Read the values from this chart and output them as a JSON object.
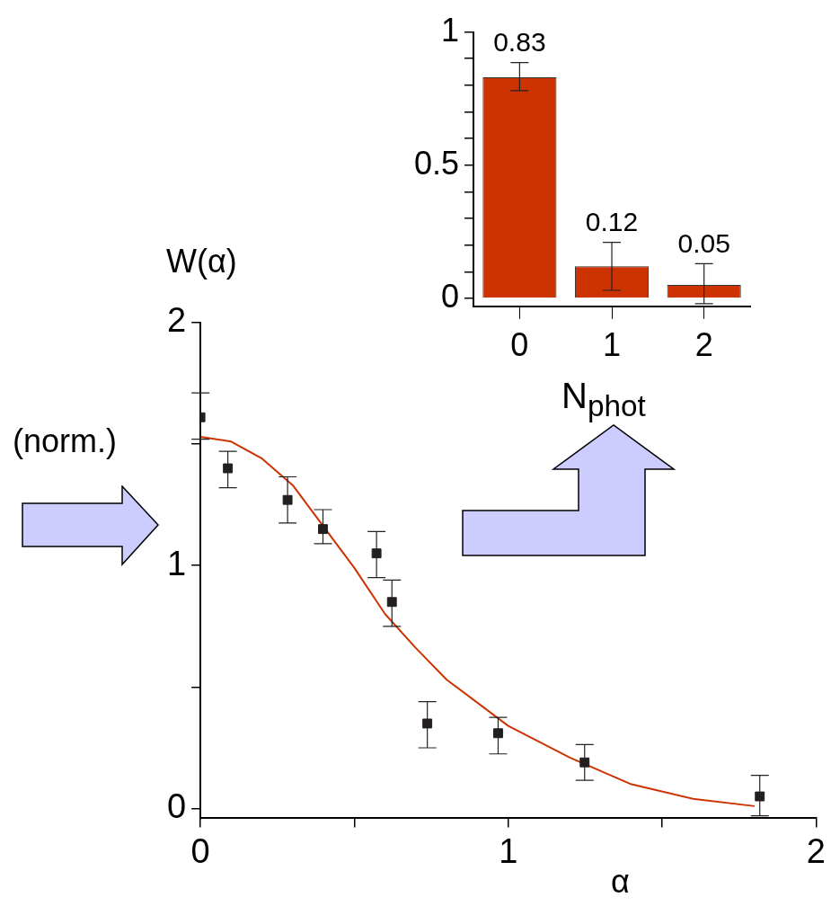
{
  "chart_data": [
    {
      "type": "bar",
      "categories": [
        "0",
        "1",
        "2"
      ],
      "values": [
        0.83,
        0.12,
        0.05
      ],
      "color": "#cc3300",
      "errors": [
        [
          0.78,
          0.885
        ],
        [
          0.03,
          0.21
        ],
        [
          -0.02,
          0.13
        ]
      ],
      "data_labels": true,
      "xlabel": "N$_{phot}$",
      "ylim": [
        -0.03,
        1
      ],
      "yticks": [
        0,
        {
          "value": 0.1,
          "label": null
        },
        {
          "value": 0.2,
          "label": null
        },
        {
          "value": 0.3,
          "label": null
        },
        {
          "value": 0.4,
          "label": null
        },
        0.5,
        {
          "value": 0.6,
          "label": null
        },
        {
          "value": 0.7,
          "label": null
        },
        {
          "value": 0.8,
          "label": null
        },
        {
          "value": 0.9,
          "label": null
        },
        1
      ],
      "grid": false
    },
    {
      "type": "scatter",
      "xlabel": "α",
      "ylabel": "W(α)",
      "annotations": [
        "(norm.)"
      ],
      "xlim": [
        0,
        2
      ],
      "xticks": [
        0,
        {
          "value": 0.5,
          "label": null
        },
        1,
        {
          "value": 1.5,
          "label": null
        },
        2
      ],
      "ylim": [
        -0.04,
        2
      ],
      "yticks": [
        0,
        {
          "value": 0.5,
          "label": null
        },
        1,
        {
          "value": 1.5,
          "label": null
        },
        2
      ],
      "grid": false,
      "series": [
        {
          "type": "scatter",
          "marker": "square",
          "color": "#231f20",
          "x": [
            0,
            0.089,
            0.283,
            0.398,
            0.572,
            0.622,
            0.737,
            0.967,
            1.248,
            1.817
          ],
          "values": [
            1.61,
            1.4,
            1.27,
            1.15,
            1.05,
            0.85,
            0.35,
            0.31,
            0.19,
            0.05
          ],
          "errors": [
            [
              1.52,
              1.71
            ],
            [
              1.32,
              1.47
            ],
            [
              1.175,
              1.365
            ],
            [
              1.09,
              1.23
            ],
            [
              0.95,
              1.14
            ],
            [
              0.75,
              0.94
            ],
            [
              0.25,
              0.44
            ],
            [
              0.225,
              0.375
            ],
            [
              0.116,
              0.263
            ],
            [
              -0.03,
              0.137
            ]
          ]
        },
        {
          "type": "line",
          "marker": "none",
          "color": "#cc3300",
          "x": [
            0,
            0.1,
            0.2,
            0.3,
            0.4,
            0.5,
            0.6,
            0.7,
            0.8,
            1.0,
            1.2,
            1.4,
            1.6,
            1.8
          ],
          "values": [
            1.53,
            1.51,
            1.44,
            1.33,
            1.16,
            0.99,
            0.8,
            0.66,
            0.53,
            0.34,
            0.21,
            0.1,
            0.04,
            0.01
          ]
        }
      ]
    }
  ]
}
